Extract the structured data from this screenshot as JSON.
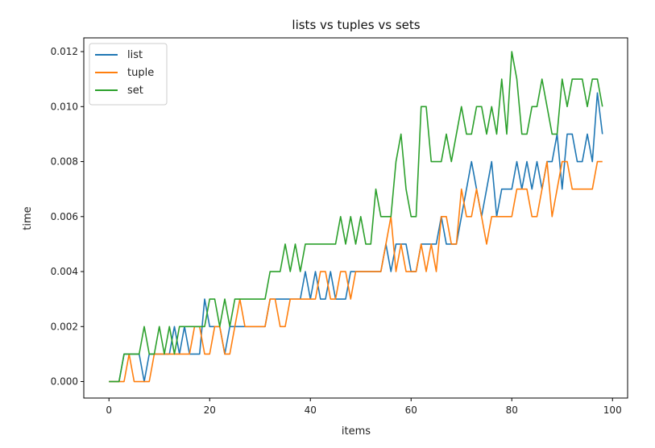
{
  "chart_data": {
    "type": "line",
    "title": "lists vs tuples vs sets",
    "xlabel": "items",
    "ylabel": "time",
    "xlim": [
      -5,
      103
    ],
    "ylim": [
      -0.0006,
      0.0125
    ],
    "xticks": [
      "0",
      "20",
      "40",
      "60",
      "80",
      "100"
    ],
    "xtick_values": [
      0,
      20,
      40,
      60,
      80,
      100
    ],
    "yticks": [
      "0.000",
      "0.002",
      "0.004",
      "0.006",
      "0.008",
      "0.010",
      "0.012"
    ],
    "ytick_values": [
      0,
      0.002,
      0.004,
      0.006,
      0.008,
      0.01,
      0.012
    ],
    "grid": false,
    "legend_position": "upper-left",
    "x": [
      0,
      1,
      2,
      3,
      4,
      5,
      6,
      7,
      8,
      9,
      10,
      11,
      12,
      13,
      14,
      15,
      16,
      17,
      18,
      19,
      20,
      21,
      22,
      23,
      24,
      25,
      26,
      27,
      28,
      29,
      30,
      31,
      32,
      33,
      34,
      35,
      36,
      37,
      38,
      39,
      40,
      41,
      42,
      43,
      44,
      45,
      46,
      47,
      48,
      49,
      50,
      51,
      52,
      53,
      54,
      55,
      56,
      57,
      58,
      59,
      60,
      61,
      62,
      63,
      64,
      65,
      66,
      67,
      68,
      69,
      70,
      71,
      72,
      73,
      74,
      75,
      76,
      77,
      78,
      79,
      80,
      81,
      82,
      83,
      84,
      85,
      86,
      87,
      88,
      89,
      90,
      91,
      92,
      93,
      94,
      95,
      96,
      97,
      98
    ],
    "series": [
      {
        "name": "list",
        "color": "#1f77b4",
        "values": [
          0,
          0,
          0,
          0.001,
          0.001,
          0.001,
          0.001,
          0,
          0.001,
          0.001,
          0.001,
          0.001,
          0.001,
          0.002,
          0.001,
          0.002,
          0.001,
          0.001,
          0.001,
          0.003,
          0.002,
          0.002,
          0.002,
          0.001,
          0.002,
          0.002,
          0.002,
          0.002,
          0.002,
          0.002,
          0.002,
          0.002,
          0.003,
          0.003,
          0.003,
          0.003,
          0.003,
          0.003,
          0.003,
          0.004,
          0.003,
          0.004,
          0.003,
          0.003,
          0.004,
          0.003,
          0.003,
          0.003,
          0.004,
          0.004,
          0.004,
          0.004,
          0.004,
          0.004,
          0.004,
          0.005,
          0.004,
          0.005,
          0.005,
          0.005,
          0.004,
          0.004,
          0.005,
          0.005,
          0.005,
          0.005,
          0.006,
          0.005,
          0.005,
          0.005,
          0.006,
          0.007,
          0.008,
          0.007,
          0.006,
          0.007,
          0.008,
          0.006,
          0.007,
          0.007,
          0.007,
          0.008,
          0.007,
          0.008,
          0.007,
          0.008,
          0.007,
          0.008,
          0.008,
          0.009,
          0.007,
          0.009,
          0.009,
          0.008,
          0.008,
          0.009,
          0.008,
          0.0105,
          0.009
        ]
      },
      {
        "name": "tuple",
        "color": "#ff7f0e",
        "values": [
          0,
          0,
          0,
          0,
          0.001,
          0,
          0,
          0,
          0,
          0.001,
          0.001,
          0.001,
          0.001,
          0.001,
          0.001,
          0.001,
          0.001,
          0.002,
          0.002,
          0.001,
          0.001,
          0.002,
          0.002,
          0.001,
          0.001,
          0.002,
          0.003,
          0.002,
          0.002,
          0.002,
          0.002,
          0.002,
          0.003,
          0.003,
          0.002,
          0.002,
          0.003,
          0.003,
          0.003,
          0.003,
          0.003,
          0.003,
          0.004,
          0.004,
          0.003,
          0.003,
          0.004,
          0.004,
          0.003,
          0.004,
          0.004,
          0.004,
          0.004,
          0.004,
          0.004,
          0.005,
          0.006,
          0.004,
          0.005,
          0.004,
          0.004,
          0.004,
          0.005,
          0.004,
          0.005,
          0.004,
          0.006,
          0.006,
          0.005,
          0.005,
          0.007,
          0.006,
          0.006,
          0.007,
          0.006,
          0.005,
          0.006,
          0.006,
          0.006,
          0.006,
          0.006,
          0.007,
          0.007,
          0.007,
          0.006,
          0.006,
          0.007,
          0.008,
          0.006,
          0.007,
          0.008,
          0.008,
          0.007,
          0.007,
          0.007,
          0.007,
          0.007,
          0.008,
          0.008
        ]
      },
      {
        "name": "set",
        "color": "#2ca02c",
        "values": [
          0,
          0,
          0,
          0.001,
          0.001,
          0.001,
          0.001,
          0.002,
          0.001,
          0.001,
          0.002,
          0.001,
          0.002,
          0.001,
          0.002,
          0.002,
          0.002,
          0.002,
          0.002,
          0.002,
          0.003,
          0.003,
          0.002,
          0.003,
          0.002,
          0.003,
          0.003,
          0.003,
          0.003,
          0.003,
          0.003,
          0.003,
          0.004,
          0.004,
          0.004,
          0.005,
          0.004,
          0.005,
          0.004,
          0.005,
          0.005,
          0.005,
          0.005,
          0.005,
          0.005,
          0.005,
          0.006,
          0.005,
          0.006,
          0.005,
          0.006,
          0.005,
          0.005,
          0.007,
          0.006,
          0.006,
          0.006,
          0.008,
          0.009,
          0.007,
          0.006,
          0.006,
          0.01,
          0.01,
          0.008,
          0.008,
          0.008,
          0.009,
          0.008,
          0.009,
          0.01,
          0.009,
          0.009,
          0.01,
          0.01,
          0.009,
          0.01,
          0.009,
          0.011,
          0.009,
          0.012,
          0.011,
          0.009,
          0.009,
          0.01,
          0.01,
          0.011,
          0.01,
          0.009,
          0.009,
          0.011,
          0.01,
          0.011,
          0.011,
          0.011,
          0.01,
          0.011,
          0.011,
          0.01
        ]
      }
    ]
  }
}
